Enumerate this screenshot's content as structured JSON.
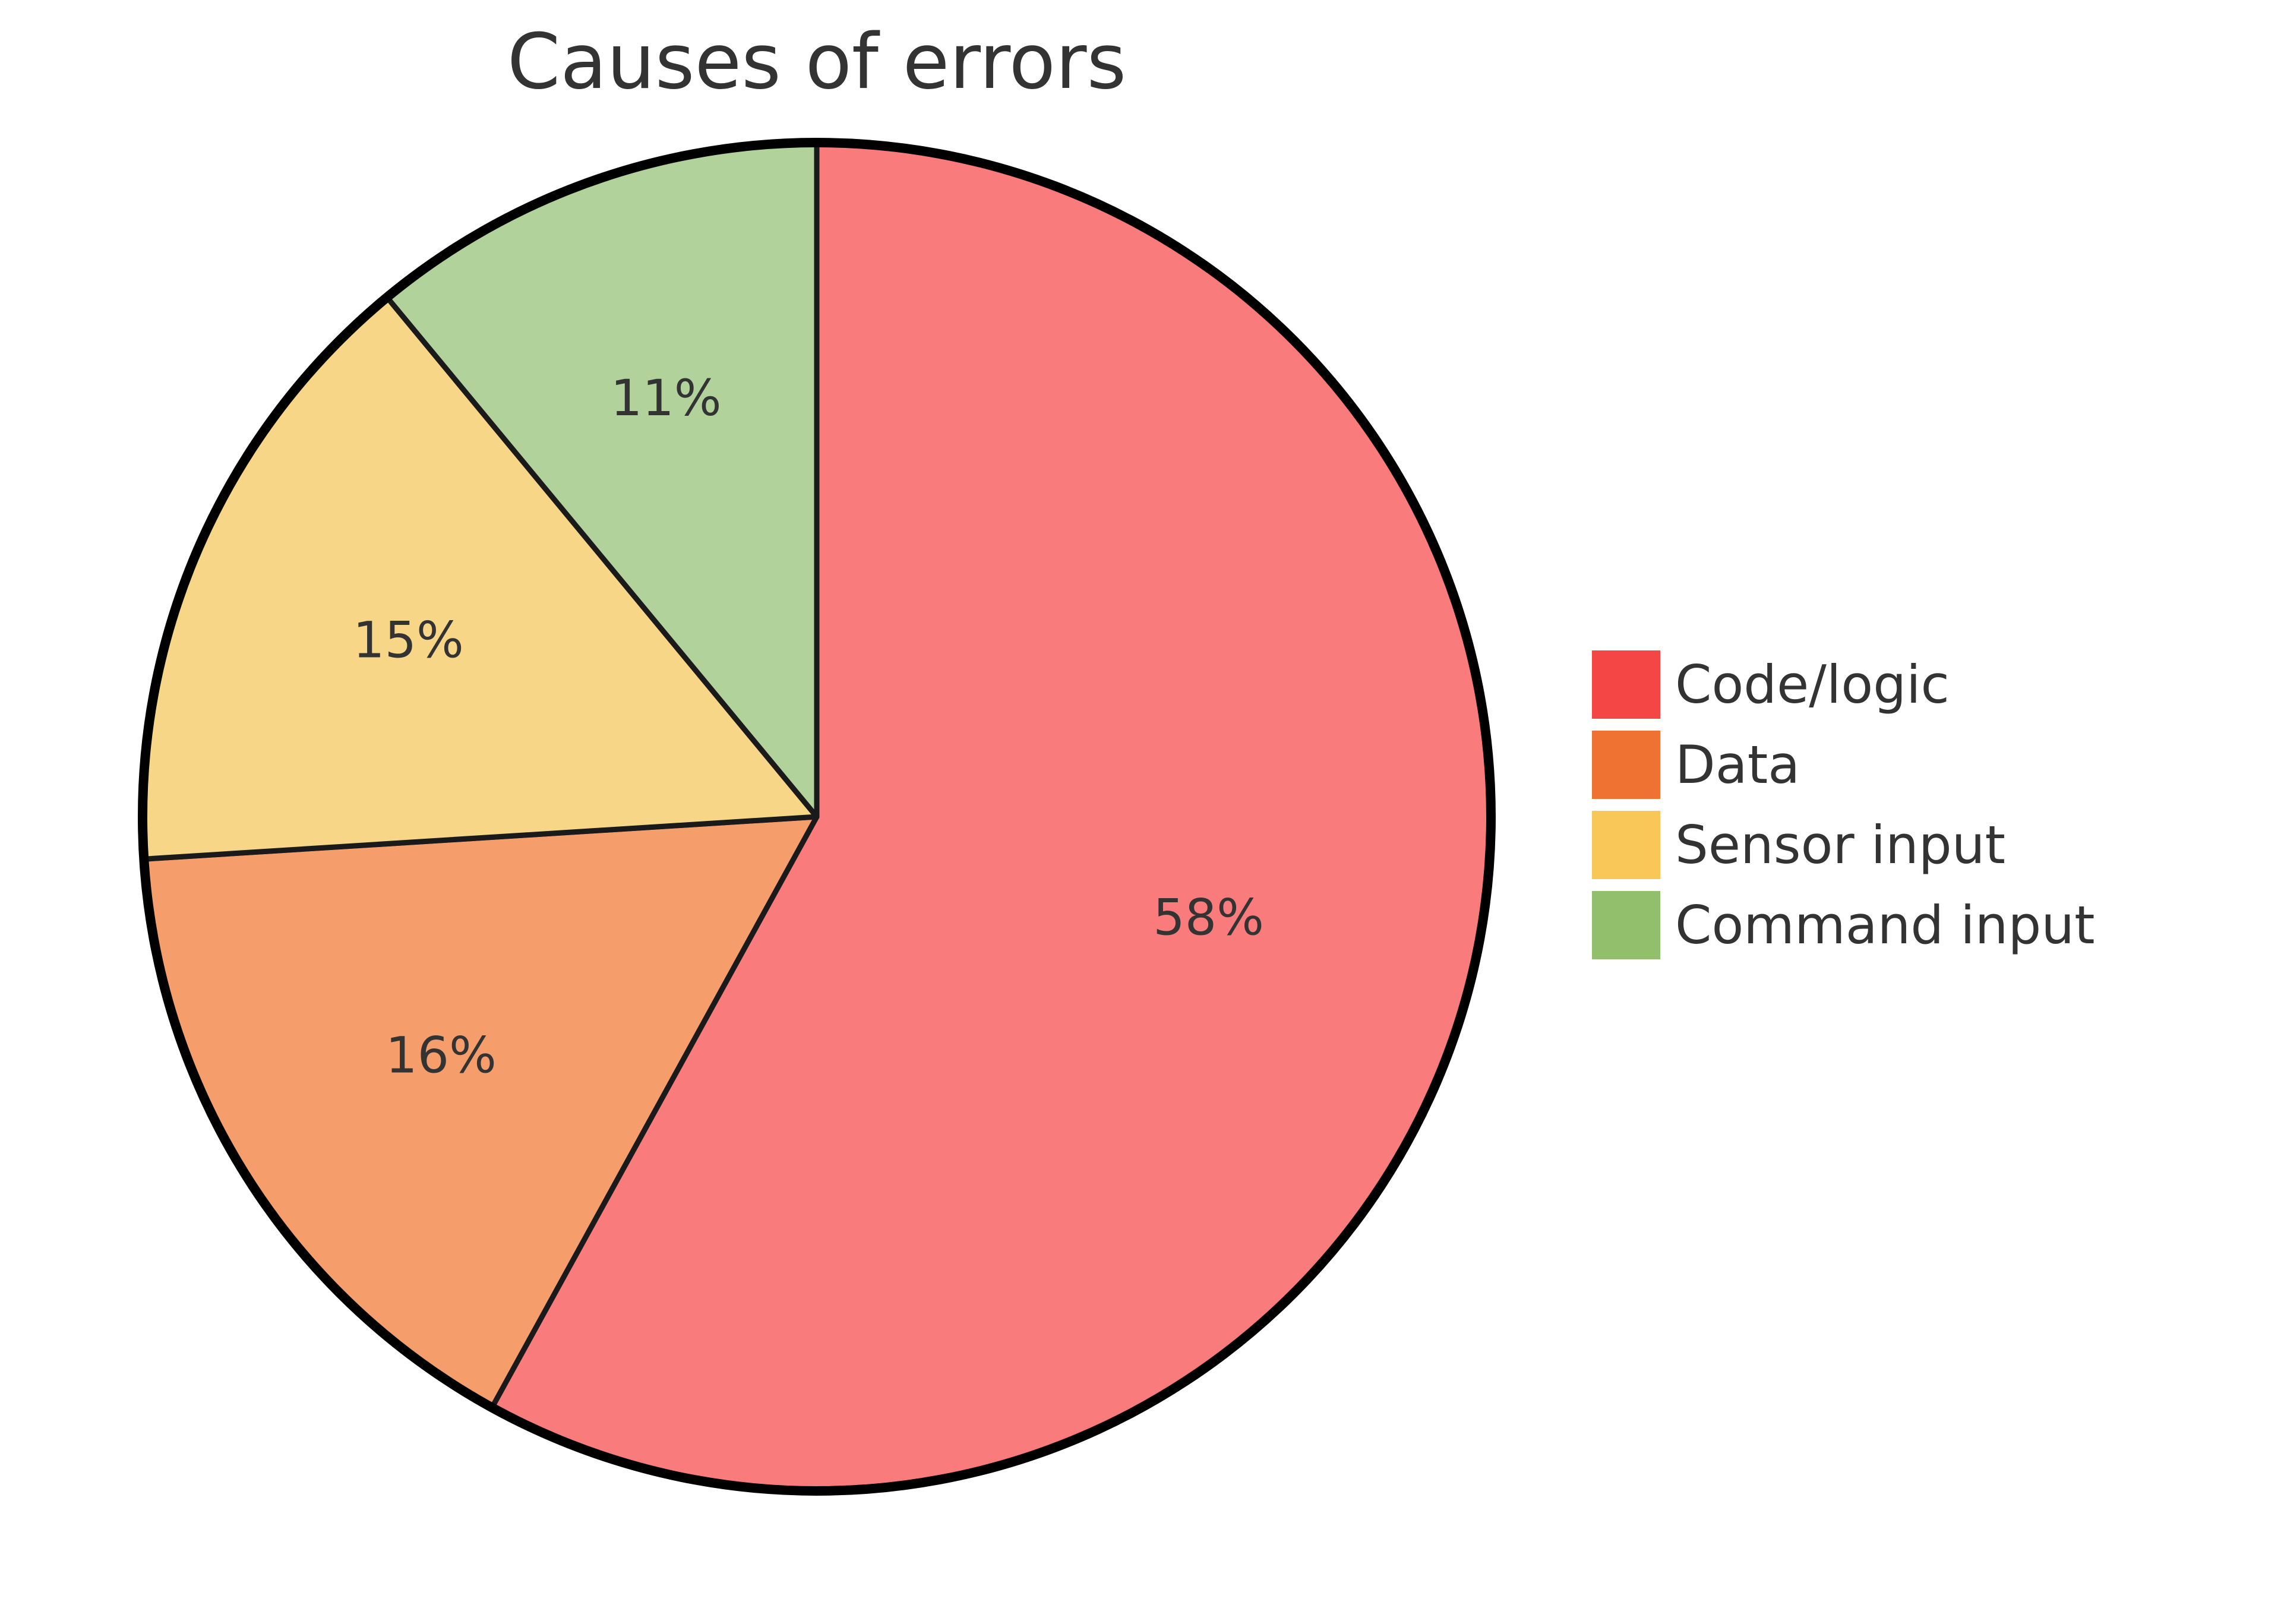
{
  "chart_data": {
    "type": "pie",
    "title": "Causes of errors",
    "categories": [
      "Code/logic",
      "Data",
      "Sensor input",
      "Command input"
    ],
    "values": [
      58,
      16,
      15,
      11
    ],
    "value_labels": [
      "58%",
      "16%",
      "15%",
      "11%"
    ],
    "slice_colors": [
      "#f97b7b",
      "#f59d6b",
      "#f8d687",
      "#b1d39b"
    ],
    "legend_colors": [
      "#f54646",
      "#f07232",
      "#f8c758",
      "#92bf6c"
    ],
    "legend_position": "right",
    "start_angle": "12 o'clock",
    "direction": "clockwise"
  }
}
